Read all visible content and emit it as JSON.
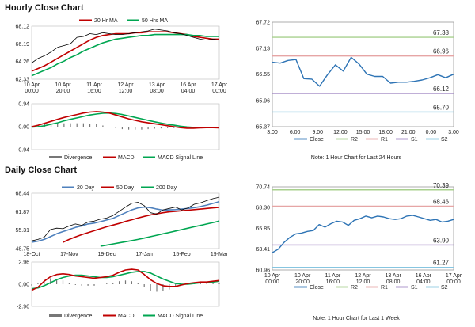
{
  "hourly": {
    "title": "Hourly Close Chart",
    "price_chart": {
      "type": "line",
      "ylim": [
        62.33,
        68.12
      ],
      "yticks": [
        "68.12",
        "66.19",
        "64.26",
        "62.33"
      ],
      "x_labels": [
        "10 Apr 00:00",
        "10 Apr 20:00",
        "11 Apr 16:00",
        "12 Apr 12:00",
        "13 Apr 08:00",
        "16 Apr 04:00",
        "17 Apr 00:00"
      ],
      "legend": [
        "20 Hr MA",
        "50 Hrs MA"
      ],
      "colors": {
        "ma20": "#c00000",
        "ma50": "#00a651",
        "price": "#000000"
      },
      "series": {
        "price": [
          64.1,
          64.6,
          64.9,
          65.3,
          65.8,
          66.0,
          66.2,
          66.9,
          67.0,
          67.3,
          67.2,
          67.4,
          67.3,
          67.2,
          67.2,
          67.3,
          67.4,
          67.5,
          67.6,
          67.8,
          67.7,
          67.6,
          67.4,
          67.3,
          67.1,
          66.9,
          66.7,
          66.6,
          66.7,
          66.6
        ],
        "ma20": [
          63.2,
          63.5,
          63.8,
          64.2,
          64.6,
          65.0,
          65.4,
          65.8,
          66.2,
          66.6,
          66.9,
          67.1,
          67.2,
          67.3,
          67.3,
          67.3,
          67.4,
          67.4,
          67.5,
          67.5,
          67.5,
          67.5,
          67.4,
          67.3,
          67.2,
          67.0,
          66.9,
          66.8,
          66.7,
          66.7
        ],
        "ma50": [
          62.7,
          63.0,
          63.3,
          63.6,
          64.0,
          64.3,
          64.7,
          65.0,
          65.4,
          65.7,
          66.0,
          66.3,
          66.5,
          66.7,
          66.8,
          66.9,
          67.0,
          67.1,
          67.1,
          67.2,
          67.2,
          67.2,
          67.2,
          67.2,
          67.2,
          67.1,
          67.1,
          67.0,
          67.0,
          67.0
        ]
      }
    },
    "macd_chart": {
      "type": "line",
      "ylim": [
        -0.94,
        0.94
      ],
      "yticks": [
        "0.94",
        "0.00",
        "-0.94"
      ],
      "legend": [
        "Divergence",
        "MACD",
        "MACD Signal Line"
      ],
      "colors": {
        "macd": "#c00000",
        "signal": "#00a651",
        "divergence": "#777777"
      },
      "series": {
        "macd": [
          0.0,
          0.06,
          0.14,
          0.22,
          0.3,
          0.38,
          0.44,
          0.5,
          0.56,
          0.6,
          0.62,
          0.6,
          0.56,
          0.48,
          0.4,
          0.32,
          0.26,
          0.2,
          0.16,
          0.12,
          0.08,
          0.04,
          0.0,
          -0.04,
          -0.06,
          -0.06,
          -0.05,
          -0.04,
          -0.04,
          -0.05
        ],
        "signal": [
          -0.02,
          0.0,
          0.04,
          0.1,
          0.16,
          0.24,
          0.3,
          0.36,
          0.42,
          0.48,
          0.52,
          0.55,
          0.56,
          0.54,
          0.5,
          0.44,
          0.38,
          0.32,
          0.26,
          0.2,
          0.15,
          0.1,
          0.06,
          0.02,
          -0.01,
          -0.03,
          -0.04,
          -0.04,
          -0.04,
          -0.04
        ],
        "divergence": [
          0.02,
          0.06,
          0.1,
          0.12,
          0.14,
          0.14,
          0.14,
          0.14,
          0.14,
          0.12,
          0.1,
          0.05,
          0.0,
          -0.06,
          -0.1,
          -0.12,
          -0.12,
          -0.12,
          -0.1,
          -0.08,
          -0.07,
          -0.06,
          -0.06,
          -0.06,
          -0.05,
          -0.03,
          -0.01,
          0.0,
          0.0,
          -0.01
        ]
      }
    },
    "pivot_chart": {
      "type": "line",
      "ylim": [
        65.37,
        67.72
      ],
      "yticks": [
        "67.72",
        "67.13",
        "66.55",
        "65.96",
        "65.37"
      ],
      "x_labels": [
        "3:00",
        "6:00",
        "9:00",
        "12:00",
        "15:00",
        "18:00",
        "21:00",
        "0:00",
        "3:00"
      ],
      "levels": [
        {
          "name": "R2",
          "value": 67.38,
          "label": "67.38",
          "color": "#a8d08d"
        },
        {
          "name": "R1",
          "value": 66.96,
          "label": "66.96",
          "color": "#e6a5a5"
        },
        {
          "name": "S1",
          "value": 66.12,
          "label": "66.12",
          "color": "#9b7fbf"
        },
        {
          "name": "S2",
          "value": 65.7,
          "label": "65.70",
          "color": "#86c5e0"
        }
      ],
      "close_color": "#2e74b5",
      "close": [
        66.82,
        66.8,
        66.86,
        66.88,
        66.45,
        66.44,
        66.28,
        66.54,
        66.76,
        66.62,
        66.93,
        66.78,
        66.55,
        66.5,
        66.5,
        66.35,
        66.37,
        66.37,
        66.39,
        66.42,
        66.47,
        66.54,
        66.47,
        66.55
      ],
      "legend": [
        "Close",
        "R2",
        "R1",
        "S1",
        "S2"
      ],
      "note": "Note: 1 Hour Chart for Last 24 Hours"
    }
  },
  "daily": {
    "title": "Daily Close Chart",
    "price_chart": {
      "type": "line",
      "ylim": [
        48.75,
        68.44
      ],
      "yticks": [
        "68.44",
        "61.87",
        "55.31",
        "48.75"
      ],
      "x_labels": [
        "18-Oct",
        "17-Nov",
        "19-Dec",
        "17-Jan",
        "15-Feb",
        "19-Mar"
      ],
      "legend": [
        "20 Day",
        "50 Day",
        "200 Day"
      ],
      "colors": {
        "ma20": "#4f81bd",
        "ma50": "#c00000",
        "ma200": "#00a651",
        "price": "#000000"
      },
      "series": {
        "price": [
          51.5,
          52.0,
          52.8,
          55.5,
          56.0,
          55.8,
          56.8,
          57.5,
          57.0,
          58.2,
          58.5,
          59.2,
          59.6,
          60.5,
          62.0,
          63.5,
          64.8,
          65.2,
          64.0,
          61.5,
          61.0,
          62.5,
          63.0,
          63.5,
          62.5,
          63.2,
          64.5,
          65.0,
          65.8,
          66.5,
          67.0
        ],
        "ma20": [
          51.0,
          51.4,
          52.0,
          53.0,
          54.0,
          54.8,
          55.5,
          56.3,
          56.8,
          57.5,
          57.8,
          58.3,
          58.9,
          59.5,
          60.5,
          61.5,
          62.5,
          63.2,
          63.5,
          63.3,
          62.8,
          62.4,
          62.5,
          62.6,
          62.8,
          63.0,
          63.3,
          63.7,
          64.2,
          64.8,
          65.4
        ],
        "ma50": [
          null,
          null,
          null,
          null,
          null,
          51.0,
          52.0,
          52.9,
          53.7,
          54.4,
          55.1,
          55.8,
          56.5,
          57.1,
          57.7,
          58.4,
          59.0,
          59.6,
          60.2,
          60.7,
          61.1,
          61.5,
          61.8,
          62.0,
          62.2,
          62.4,
          62.6,
          62.8,
          63.0,
          63.2,
          63.4
        ],
        "ma200": [
          null,
          null,
          null,
          null,
          null,
          null,
          null,
          null,
          null,
          null,
          null,
          49.6,
          50.0,
          50.4,
          50.8,
          51.2,
          51.6,
          52.0,
          52.5,
          53.0,
          53.5,
          54.0,
          54.5,
          55.0,
          55.5,
          56.0,
          56.5,
          57.0,
          57.5,
          58.0,
          58.5
        ]
      }
    },
    "macd_chart": {
      "type": "line",
      "ylim": [
        -2.96,
        2.96
      ],
      "yticks": [
        "2.96",
        "0.00",
        "-2.96"
      ],
      "legend": [
        "Divergence",
        "MACD",
        "MACD Signal Line"
      ],
      "colors": {
        "macd": "#c00000",
        "signal": "#00a651",
        "divergence": "#777777"
      },
      "series": {
        "macd": [
          -0.8,
          -0.4,
          0.4,
          1.0,
          1.3,
          1.4,
          1.3,
          1.1,
          1.0,
          0.9,
          0.8,
          0.9,
          1.0,
          1.2,
          1.6,
          1.9,
          2.0,
          1.9,
          1.3,
          0.6,
          0.1,
          -0.2,
          -0.3,
          -0.3,
          -0.1,
          0.1,
          0.2,
          0.3,
          0.3,
          0.4,
          0.5
        ],
        "signal": [
          -0.6,
          -0.5,
          -0.2,
          0.2,
          0.6,
          0.9,
          1.1,
          1.2,
          1.2,
          1.1,
          1.0,
          0.9,
          0.9,
          1.0,
          1.2,
          1.4,
          1.6,
          1.7,
          1.7,
          1.5,
          1.1,
          0.7,
          0.4,
          0.1,
          0.0,
          0.0,
          0.1,
          0.2,
          0.2,
          0.3,
          0.4
        ],
        "divergence": [
          -0.2,
          0.1,
          0.6,
          0.8,
          0.7,
          0.5,
          0.2,
          -0.1,
          -0.2,
          -0.2,
          -0.2,
          0.0,
          0.1,
          0.2,
          0.4,
          0.5,
          0.4,
          0.2,
          -0.4,
          -0.9,
          -1.0,
          -0.9,
          -0.7,
          -0.4,
          -0.1,
          0.1,
          0.1,
          0.1,
          0.1,
          0.1,
          0.1
        ]
      }
    },
    "pivot_chart": {
      "type": "line",
      "ylim": [
        60.96,
        70.74
      ],
      "yticks": [
        "70.74",
        "68.30",
        "65.85",
        "63.41",
        "60.96"
      ],
      "x_labels": [
        "10 Apr 00:00",
        "10 Apr 20:00",
        "11 Apr 16:00",
        "12 Apr 12:00",
        "13 Apr 08:00",
        "16 Apr 04:00",
        "17 Apr 00:00"
      ],
      "levels": [
        {
          "name": "R2",
          "value": 70.39,
          "label": "70.39",
          "color": "#a8d08d"
        },
        {
          "name": "R1",
          "value": 68.46,
          "label": "68.46",
          "color": "#e6a5a5"
        },
        {
          "name": "S1",
          "value": 63.9,
          "label": "63.90",
          "color": "#9b7fbf"
        },
        {
          "name": "S2",
          "value": 61.27,
          "label": "61.27",
          "color": "#86c5e0"
        }
      ],
      "close_color": "#2e74b5",
      "close": [
        63.0,
        63.4,
        64.2,
        64.8,
        65.2,
        65.3,
        65.5,
        65.6,
        66.3,
        66.0,
        66.4,
        66.7,
        66.6,
        66.2,
        66.8,
        67.0,
        67.3,
        67.1,
        67.3,
        67.2,
        67.0,
        66.9,
        67.0,
        67.3,
        67.4,
        67.2,
        67.0,
        66.8,
        66.9,
        66.6,
        66.7,
        66.9
      ],
      "legend": [
        "Close",
        "R2",
        "R1",
        "S1",
        "S2"
      ],
      "note": "Note: 1 Hour Chart for Last 1 Week"
    }
  }
}
